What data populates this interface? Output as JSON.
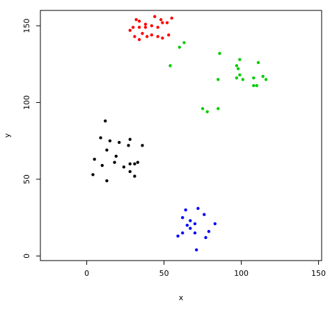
{
  "chart_data": {
    "type": "scatter",
    "title": "",
    "xlabel": "x",
    "ylabel": "y",
    "xlim": [
      -30,
      152
    ],
    "ylim": [
      -3,
      160
    ],
    "x_ticks": [
      0,
      50,
      100,
      150
    ],
    "y_ticks": [
      0,
      50,
      100,
      150
    ],
    "grid": false,
    "legend": "none",
    "series": [
      {
        "color": "#000000",
        "points": [
          [
            12,
            88
          ],
          [
            9,
            77
          ],
          [
            15,
            75
          ],
          [
            21,
            74
          ],
          [
            28,
            76
          ],
          [
            27,
            72
          ],
          [
            36,
            72
          ],
          [
            13,
            69
          ],
          [
            19,
            65
          ],
          [
            5,
            63
          ],
          [
            18,
            61
          ],
          [
            28,
            60
          ],
          [
            31,
            60
          ],
          [
            33,
            61
          ],
          [
            10,
            59
          ],
          [
            24,
            58
          ],
          [
            28,
            55
          ],
          [
            31,
            52
          ],
          [
            4,
            53
          ],
          [
            13,
            49
          ]
        ]
      },
      {
        "color": "#ff0000",
        "points": [
          [
            44,
            156
          ],
          [
            32,
            154
          ],
          [
            34,
            153
          ],
          [
            48,
            154
          ],
          [
            55,
            155
          ],
          [
            38,
            151
          ],
          [
            42,
            150
          ],
          [
            46,
            149
          ],
          [
            49,
            152
          ],
          [
            52,
            152
          ],
          [
            30,
            149
          ],
          [
            34,
            149
          ],
          [
            38,
            149
          ],
          [
            28,
            147
          ],
          [
            36,
            145
          ],
          [
            42,
            144
          ],
          [
            46,
            143
          ],
          [
            49,
            142
          ],
          [
            53,
            144
          ],
          [
            31,
            143
          ],
          [
            34,
            141
          ],
          [
            39,
            143
          ]
        ]
      },
      {
        "color": "#00cc00",
        "points": [
          [
            63,
            139
          ],
          [
            60,
            136
          ],
          [
            86,
            132
          ],
          [
            54,
            124
          ],
          [
            99,
            128
          ],
          [
            97,
            124
          ],
          [
            98,
            122
          ],
          [
            111,
            126
          ],
          [
            99,
            118
          ],
          [
            97,
            116
          ],
          [
            101,
            115
          ],
          [
            108,
            116
          ],
          [
            114,
            117
          ],
          [
            116,
            115
          ],
          [
            85,
            115
          ],
          [
            108,
            111
          ],
          [
            110,
            111
          ],
          [
            75,
            96
          ],
          [
            78,
            94
          ],
          [
            85,
            96
          ]
        ]
      },
      {
        "color": "#0000ff",
        "points": [
          [
            72,
            31
          ],
          [
            64,
            30
          ],
          [
            76,
            27
          ],
          [
            62,
            25
          ],
          [
            67,
            23
          ],
          [
            65,
            20
          ],
          [
            70,
            21
          ],
          [
            83,
            21
          ],
          [
            67,
            18
          ],
          [
            79,
            16
          ],
          [
            62,
            15
          ],
          [
            59,
            13
          ],
          [
            70,
            15
          ],
          [
            77,
            12
          ],
          [
            71,
            4
          ]
        ]
      }
    ]
  }
}
